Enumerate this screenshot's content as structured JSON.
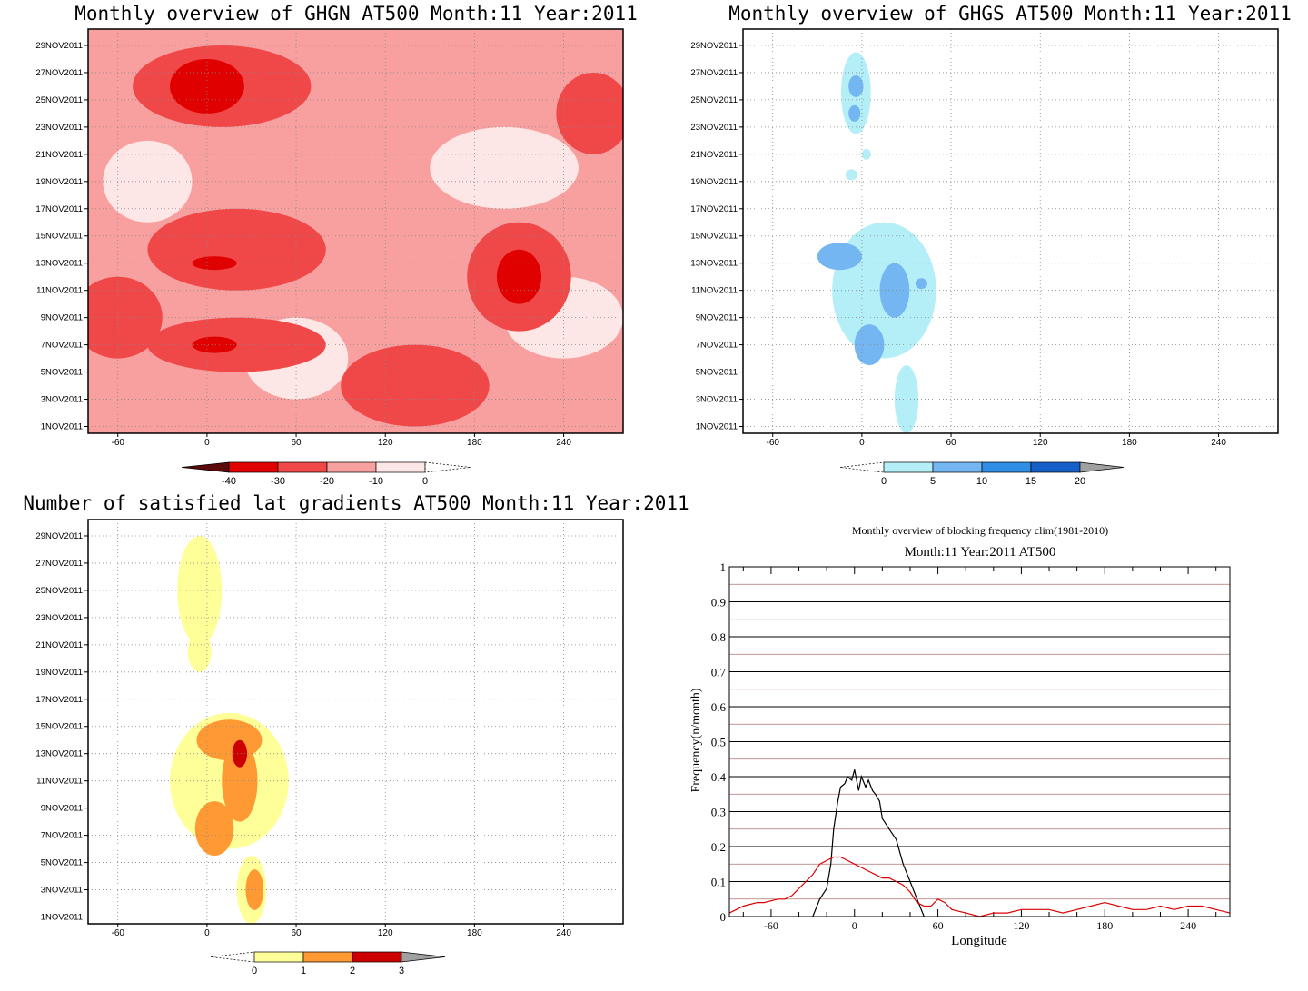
{
  "chart_data": [
    {
      "type": "heatmap",
      "title": "Monthly overview of GHGN AT500 Month:11 Year:2011",
      "xlabel": "",
      "ylabel": "",
      "xlim": [
        -80,
        280
      ],
      "x_ticks": [
        "-60",
        "0",
        "60",
        "120",
        "180",
        "240"
      ],
      "y_ticks": [
        "1NOV2011",
        "3NOV2011",
        "5NOV2011",
        "7NOV2011",
        "9NOV2011",
        "11NOV2011",
        "13NOV2011",
        "15NOV2011",
        "17NOV2011",
        "19NOV2011",
        "21NOV2011",
        "23NOV2011",
        "25NOV2011",
        "27NOV2011",
        "29NOV2011"
      ],
      "colorbar": {
        "labels": [
          "-40",
          "-30",
          "-20",
          "-10",
          "0"
        ],
        "colors": [
          "#5a0a0a",
          "#e00000",
          "#f04848",
          "#f8a0a0",
          "#fde6e6"
        ]
      },
      "background": "#f8a0a0",
      "regions": [
        {
          "value": -10,
          "lon": 40,
          "day": 1,
          "rx": 70,
          "ry": 5
        },
        {
          "value": 0,
          "lon": 200,
          "day": 20,
          "rx": 50,
          "ry": 3
        },
        {
          "value": 0,
          "lon": 240,
          "day": 9,
          "rx": 40,
          "ry": 3
        },
        {
          "value": 0,
          "lon": -40,
          "day": 19,
          "rx": 30,
          "ry": 3
        },
        {
          "value": 0,
          "lon": 60,
          "day": 6,
          "rx": 35,
          "ry": 3
        },
        {
          "value": -20,
          "lon": 10,
          "day": 26,
          "rx": 60,
          "ry": 3
        },
        {
          "value": -20,
          "lon": 20,
          "day": 14,
          "rx": 60,
          "ry": 3
        },
        {
          "value": -20,
          "lon": 20,
          "day": 7,
          "rx": 60,
          "ry": 2
        },
        {
          "value": -20,
          "lon": 210,
          "day": 12,
          "rx": 35,
          "ry": 4
        },
        {
          "value": -20,
          "lon": 140,
          "day": 4,
          "rx": 50,
          "ry": 3
        },
        {
          "value": -20,
          "lon": 260,
          "day": 24,
          "rx": 25,
          "ry": 3
        },
        {
          "value": -20,
          "lon": -60,
          "day": 9,
          "rx": 30,
          "ry": 3
        },
        {
          "value": -30,
          "lon": 0,
          "day": 26,
          "rx": 25,
          "ry": 2
        },
        {
          "value": -30,
          "lon": 210,
          "day": 12,
          "rx": 15,
          "ry": 2
        },
        {
          "value": -30,
          "lon": 5,
          "day": 13,
          "rx": 15,
          "ry": 0.5
        },
        {
          "value": -30,
          "lon": 5,
          "day": 7,
          "rx": 15,
          "ry": 0.6
        }
      ]
    },
    {
      "type": "heatmap",
      "title": "Monthly overview of GHGS AT500 Month:11 Year:2011",
      "xlabel": "",
      "ylabel": "",
      "xlim": [
        -80,
        280
      ],
      "x_ticks": [
        "-60",
        "0",
        "60",
        "120",
        "180",
        "240"
      ],
      "y_ticks": [
        "1NOV2011",
        "3NOV2011",
        "5NOV2011",
        "7NOV2011",
        "9NOV2011",
        "11NOV2011",
        "13NOV2011",
        "15NOV2011",
        "17NOV2011",
        "19NOV2011",
        "21NOV2011",
        "23NOV2011",
        "25NOV2011",
        "27NOV2011",
        "29NOV2011"
      ],
      "colorbar": {
        "labels": [
          "0",
          "5",
          "10",
          "15",
          "20"
        ],
        "colors": [
          "#b4eef6",
          "#74b6f2",
          "#2f8de6",
          "#1560c8",
          "#a0a0a0"
        ]
      },
      "background": "#ffffff",
      "regions": [
        {
          "value": 0,
          "lon": -4,
          "day": 25.5,
          "rx": 10,
          "ry": 3
        },
        {
          "value": 0,
          "lon": -7,
          "day": 19.5,
          "rx": 4,
          "ry": 0.4
        },
        {
          "value": 0,
          "lon": 3,
          "day": 21,
          "rx": 3,
          "ry": 0.4
        },
        {
          "value": 0,
          "lon": 15,
          "day": 11,
          "rx": 35,
          "ry": 5
        },
        {
          "value": 0,
          "lon": 30,
          "day": 3,
          "rx": 8,
          "ry": 2.5
        },
        {
          "value": 5,
          "lon": -4,
          "day": 26,
          "rx": 5,
          "ry": 0.8
        },
        {
          "value": 5,
          "lon": -5,
          "day": 24,
          "rx": 4,
          "ry": 0.6
        },
        {
          "value": 5,
          "lon": -15,
          "day": 13.5,
          "rx": 15,
          "ry": 1
        },
        {
          "value": 5,
          "lon": 22,
          "day": 11,
          "rx": 10,
          "ry": 2
        },
        {
          "value": 5,
          "lon": 5,
          "day": 7,
          "rx": 10,
          "ry": 1.5
        },
        {
          "value": 5,
          "lon": 40,
          "day": 11.5,
          "rx": 4,
          "ry": 0.4
        }
      ]
    },
    {
      "type": "heatmap",
      "title": "Number of satisfied lat gradients AT500 Month:11 Year:2011",
      "xlabel": "",
      "ylabel": "",
      "xlim": [
        -80,
        280
      ],
      "x_ticks": [
        "-60",
        "0",
        "60",
        "120",
        "180",
        "240"
      ],
      "y_ticks": [
        "1NOV2011",
        "3NOV2011",
        "5NOV2011",
        "7NOV2011",
        "9NOV2011",
        "11NOV2011",
        "13NOV2011",
        "15NOV2011",
        "17NOV2011",
        "19NOV2011",
        "21NOV2011",
        "23NOV2011",
        "25NOV2011",
        "27NOV2011",
        "29NOV2011"
      ],
      "colorbar": {
        "labels": [
          "0",
          "1",
          "2",
          "3"
        ],
        "colors": [
          "#ffff99",
          "#ff9933",
          "#cc0000",
          "#a0a0a0"
        ]
      },
      "background": "#ffffff",
      "regions": [
        {
          "value": 0,
          "lon": -5,
          "day": 25,
          "rx": 15,
          "ry": 4
        },
        {
          "value": 0,
          "lon": -5,
          "day": 20.5,
          "rx": 8,
          "ry": 1.5
        },
        {
          "value": 0,
          "lon": 15,
          "day": 11,
          "rx": 40,
          "ry": 5
        },
        {
          "value": 0,
          "lon": 30,
          "day": 3,
          "rx": 10,
          "ry": 2.5
        },
        {
          "value": 1,
          "lon": 15,
          "day": 14,
          "rx": 22,
          "ry": 1.5
        },
        {
          "value": 1,
          "lon": 22,
          "day": 11,
          "rx": 12,
          "ry": 3
        },
        {
          "value": 1,
          "lon": 5,
          "day": 7.5,
          "rx": 13,
          "ry": 2
        },
        {
          "value": 1,
          "lon": 32,
          "day": 3,
          "rx": 6,
          "ry": 1.5
        },
        {
          "value": 2,
          "lon": 22,
          "day": 13,
          "rx": 5,
          "ry": 1
        }
      ]
    },
    {
      "type": "line",
      "title": "Monthly overview of blocking frequency clim(1981-2010)",
      "subtitle": "Month:11 Year:2011  AT500",
      "xlabel": "Longitude",
      "ylabel": "Frequency(n/month)",
      "xlim": [
        -90,
        270
      ],
      "ylim": [
        0,
        1
      ],
      "x_ticks": [
        "-60",
        "0",
        "60",
        "120",
        "180",
        "240"
      ],
      "y_ticks": [
        "0",
        "0.1",
        "0.2",
        "0.3",
        "0.4",
        "0.5",
        "0.6",
        "0.7",
        "0.8",
        "0.9",
        "1"
      ],
      "grid": true,
      "series": [
        {
          "color": "#000000",
          "x": [
            -30,
            -25,
            -20,
            -17,
            -15,
            -12,
            -10,
            -7,
            -5,
            -2,
            0,
            3,
            5,
            8,
            10,
            13,
            15,
            18,
            20,
            25,
            30,
            35,
            40,
            45,
            50
          ],
          "values": [
            0,
            0.05,
            0.08,
            0.15,
            0.25,
            0.33,
            0.37,
            0.38,
            0.4,
            0.39,
            0.42,
            0.36,
            0.4,
            0.37,
            0.39,
            0.36,
            0.35,
            0.33,
            0.28,
            0.25,
            0.22,
            0.15,
            0.1,
            0.05,
            0
          ]
        },
        {
          "color": "#dd0000",
          "x": [
            -90,
            -85,
            -80,
            -75,
            -70,
            -65,
            -60,
            -55,
            -50,
            -45,
            -40,
            -35,
            -30,
            -25,
            -20,
            -15,
            -10,
            -5,
            0,
            5,
            10,
            15,
            20,
            25,
            30,
            35,
            40,
            45,
            50,
            55,
            60,
            65,
            70,
            80,
            90,
            100,
            110,
            120,
            130,
            140,
            150,
            160,
            170,
            180,
            190,
            200,
            210,
            220,
            230,
            240,
            250,
            260,
            270
          ],
          "values": [
            0.01,
            0.02,
            0.03,
            0.035,
            0.04,
            0.04,
            0.045,
            0.05,
            0.05,
            0.06,
            0.08,
            0.1,
            0.12,
            0.15,
            0.16,
            0.17,
            0.17,
            0.16,
            0.15,
            0.14,
            0.13,
            0.12,
            0.11,
            0.11,
            0.1,
            0.09,
            0.07,
            0.04,
            0.03,
            0.03,
            0.05,
            0.04,
            0.02,
            0.01,
            0.0,
            0.01,
            0.01,
            0.02,
            0.02,
            0.02,
            0.01,
            0.02,
            0.03,
            0.04,
            0.03,
            0.02,
            0.02,
            0.03,
            0.02,
            0.03,
            0.03,
            0.02,
            0.01
          ]
        }
      ]
    }
  ]
}
